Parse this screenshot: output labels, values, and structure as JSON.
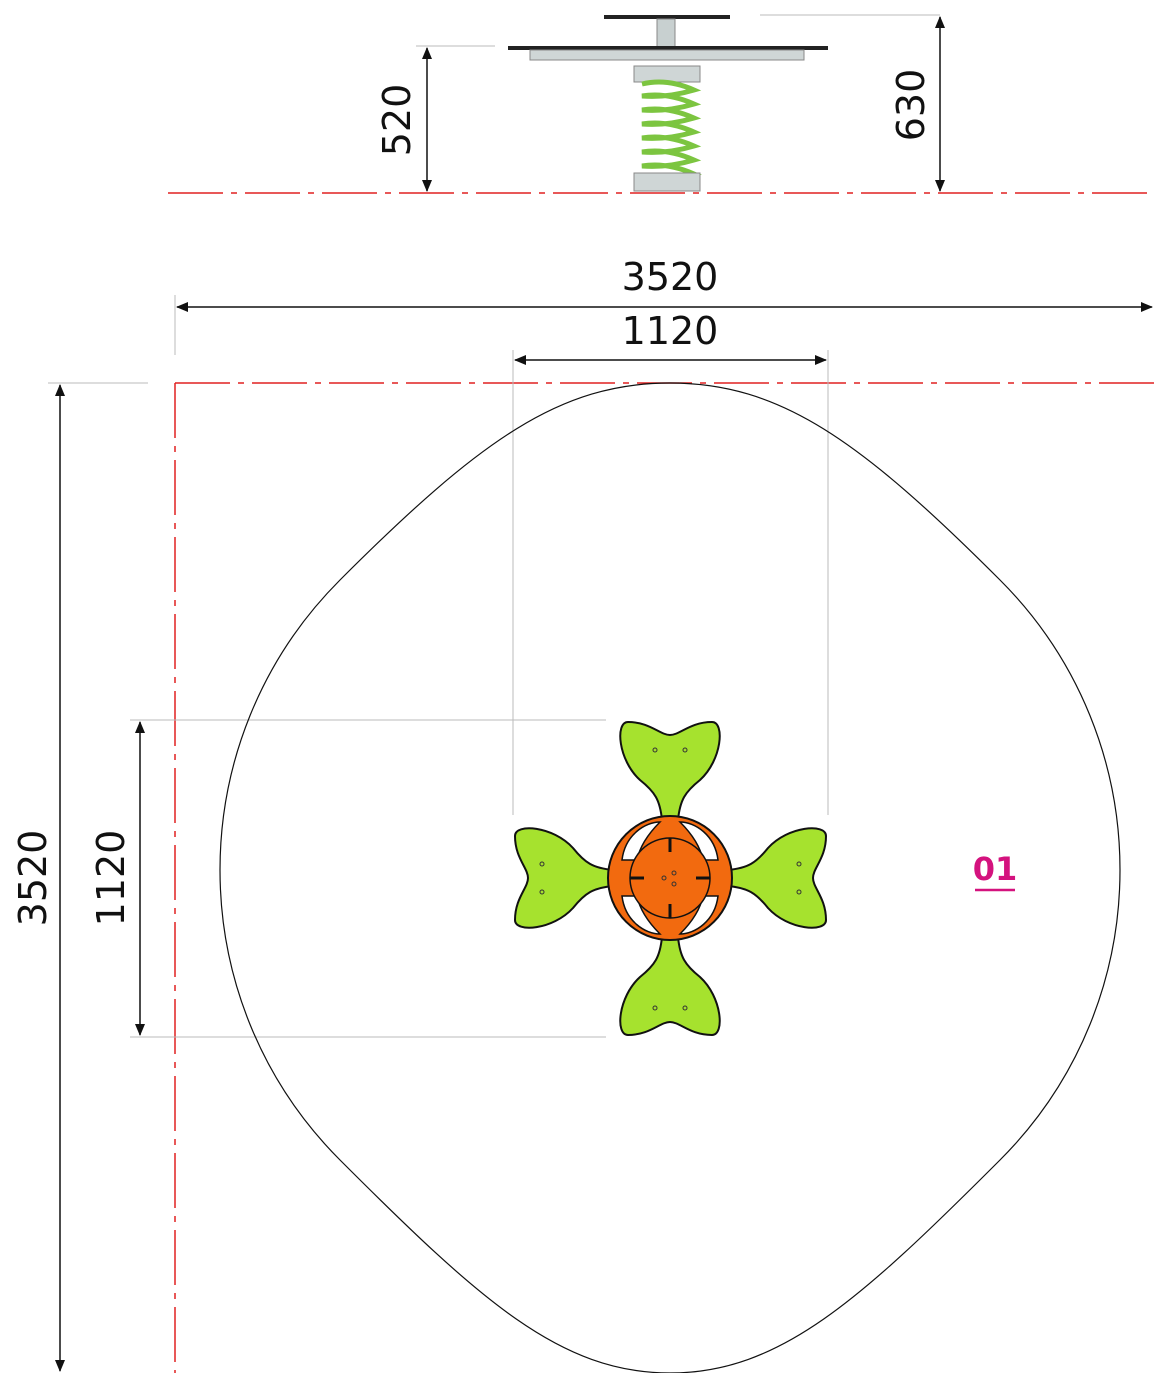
{
  "elevation": {
    "dim_left": "520",
    "dim_right": "630"
  },
  "plan": {
    "dim_total_width": "3520",
    "dim_seat_width": "1120",
    "dim_total_height": "3520",
    "dim_seat_height": "1120",
    "zone_tag": "01"
  },
  "colors": {
    "guide_line": "#e02020",
    "seat_green": "#a6e22e",
    "hub_orange": "#f26a0f",
    "spring_green": "#7cc540",
    "tag_magenta": "#d4127e",
    "outline": "#111111"
  }
}
